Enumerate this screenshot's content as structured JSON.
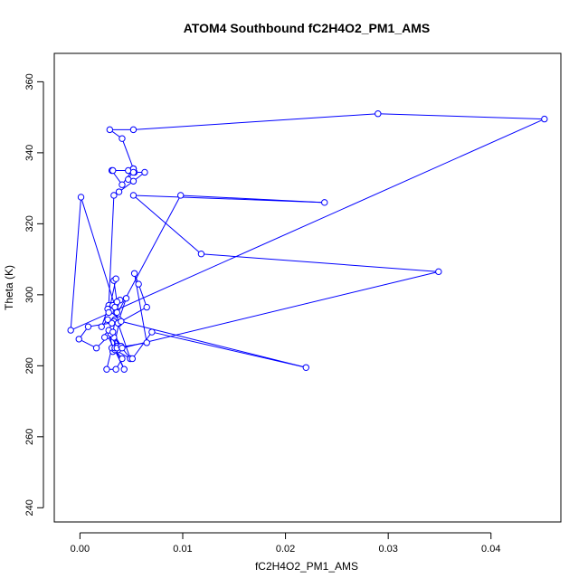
{
  "chart_data": {
    "type": "scatter",
    "title": "ATOM4 Southbound fC2H4O2_PM1_AMS",
    "xlabel": "fC2H4O2_PM1_AMS",
    "ylabel": "Theta (K)",
    "xlim": [
      -0.0025,
      0.0468
    ],
    "ylim": [
      236,
      368
    ],
    "xticks": [
      0.0,
      0.01,
      0.02,
      0.03,
      0.04
    ],
    "xtick_labels": [
      "0.00",
      "0.01",
      "0.02",
      "0.03",
      "0.04"
    ],
    "yticks": [
      240,
      260,
      280,
      300,
      320,
      340,
      360
    ],
    "ytick_labels": [
      "240",
      "260",
      "280",
      "300",
      "320",
      "340",
      "360"
    ],
    "grid": false,
    "connected": true,
    "color": "#0000ff",
    "series": [
      {
        "x": [
          0.0047,
          0.0052,
          0.0052,
          0.0041,
          0.0031,
          0.0032,
          0.0047,
          0.0052,
          0.0053,
          0.0063,
          0.0052,
          0.0038,
          0.0033,
          0.0028,
          0.0029,
          0.0031,
          0.0035,
          0.0039,
          0.0045,
          0.0038,
          0.0034,
          0.0033,
          0.0031,
          0.0027,
          0.0021,
          0.0027,
          0.0032,
          0.0036,
          0.0033,
          0.0035,
          0.0028,
          0.0034,
          0.0038,
          0.0032,
          0.0029,
          0.0036,
          0.0037,
          0.0031,
          0.0026,
          0.0035,
          0.0041,
          0.0034,
          0.0049,
          0.0037,
          0.0065,
          0.0057,
          0.0053,
          0.0065,
          0.0034,
          0.0043,
          0.0027,
          0.0033,
          0.0049,
          0.0051,
          0.007,
          0.022,
          0.004,
          0.0008,
          -0.0001,
          0.0016,
          0.003,
          0.0036,
          0.004,
          0.0028,
          0.0024,
          0.0098,
          0.0238,
          0.0052,
          0.0118,
          0.0349,
          0.0041,
          0.0032,
          0.0036,
          0.0001,
          -0.0009,
          0.0452,
          0.029,
          0.0052,
          0.0029,
          0.0041,
          0.0052,
          0.0052
        ],
        "y": [
          332.5,
          335.0,
          335.5,
          331.0,
          335.0,
          335.0,
          335.0,
          335.5,
          334.5,
          334.5,
          332.0,
          329.0,
          328.0,
          297.0,
          296.0,
          295.5,
          295.0,
          298.5,
          299.0,
          293.0,
          293.0,
          292.5,
          292.0,
          293.0,
          291.0,
          296.0,
          297.0,
          298.0,
          304.0,
          304.5,
          295.0,
          296.5,
          292.0,
          284.0,
          289.0,
          285.5,
          284.5,
          285.0,
          279.0,
          279.0,
          282.0,
          284.5,
          282.0,
          292.0,
          296.5,
          303.0,
          306.0,
          286.5,
          285.0,
          279.0,
          288.5,
          288.0,
          282.0,
          282.0,
          289.5,
          279.5,
          292.5,
          291.0,
          287.5,
          285.0,
          289.0,
          285.0,
          285.5,
          290.0,
          288.0,
          328.0,
          326.0,
          328.0,
          311.5,
          306.5,
          285.0,
          289.5,
          295.0,
          327.5,
          290.0,
          349.5,
          351.0,
          346.5,
          346.5,
          344.0,
          335.5,
          334.5
        ]
      }
    ]
  }
}
